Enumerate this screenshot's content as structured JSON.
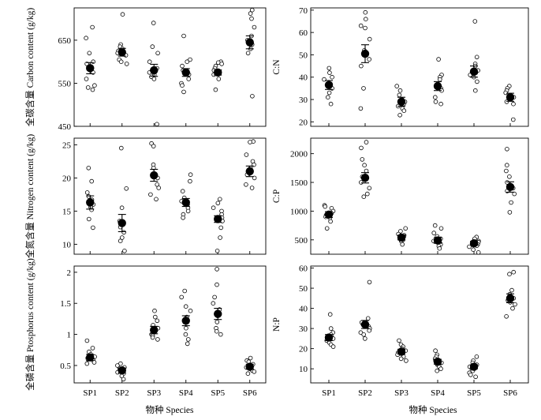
{
  "x_axis_title": "物种 Species",
  "chart_data": [
    {
      "type": "scatter",
      "ylabel": "全碳含量 Carbon content (g/kg)",
      "categories": [
        "SP1",
        "SP2",
        "SP3",
        "SP4",
        "SP5",
        "SP6"
      ],
      "ylim": [
        450,
        725
      ],
      "yticks": [
        450,
        550,
        650
      ],
      "means": [
        585,
        622,
        580,
        575,
        575,
        645
      ],
      "se": [
        13,
        9,
        14,
        9,
        6,
        15
      ],
      "points": [
        [
          680,
          655,
          620,
          600,
          595,
          575,
          560,
          545,
          540,
          535
        ],
        [
          710,
          640,
          635,
          630,
          625,
          620,
          615,
          605,
          600,
          595
        ],
        [
          690,
          635,
          620,
          600,
          585,
          575,
          570,
          565,
          560,
          455
        ],
        [
          660,
          605,
          600,
          590,
          580,
          570,
          560,
          550,
          545,
          530
        ],
        [
          600,
          598,
          595,
          590,
          585,
          580,
          578,
          570,
          560,
          535
        ],
        [
          720,
          712,
          700,
          680,
          660,
          650,
          640,
          630,
          620,
          520
        ]
      ]
    },
    {
      "type": "scatter",
      "ylabel": "C:N",
      "categories": [
        "SP1",
        "SP2",
        "SP3",
        "SP4",
        "SP5",
        "SP6"
      ],
      "ylim": [
        18,
        71
      ],
      "yticks": [
        20,
        30,
        40,
        50,
        60,
        70
      ],
      "means": [
        36.5,
        50.5,
        29,
        36,
        42.5,
        31
      ],
      "se": [
        2,
        4,
        2,
        2,
        2.5,
        1.8
      ],
      "points": [
        [
          44,
          42,
          40,
          39,
          37,
          36,
          35,
          33,
          31,
          28
        ],
        [
          69,
          66,
          63,
          62,
          57,
          52,
          48,
          45,
          35,
          26
        ],
        [
          36,
          34,
          32,
          30,
          29,
          28,
          27,
          26,
          25,
          23
        ],
        [
          48,
          41,
          40,
          39,
          37,
          35,
          34,
          31,
          29,
          28
        ],
        [
          65,
          49,
          46,
          45,
          43,
          42,
          41,
          40,
          38,
          34
        ],
        [
          36,
          35,
          34,
          33,
          32,
          31,
          30,
          29,
          28,
          21
        ]
      ]
    },
    {
      "type": "scatter",
      "ylabel": "全氮含量 Nitrogen content (g/kg)",
      "categories": [
        "SP1",
        "SP2",
        "SP3",
        "SP4",
        "SP5",
        "SP6"
      ],
      "ylim": [
        8.5,
        26
      ],
      "yticks": [
        10,
        15,
        20,
        25
      ],
      "means": [
        16.3,
        13.2,
        20.4,
        16.3,
        13.8,
        21.0
      ],
      "se": [
        1.0,
        1.3,
        0.9,
        0.6,
        0.5,
        0.8
      ],
      "points": [
        [
          21.5,
          19.5,
          17.8,
          17.2,
          16.7,
          16.0,
          15.6,
          15.2,
          13.8,
          12.5
        ],
        [
          24.5,
          18.4,
          15.5,
          13.5,
          13.0,
          12.6,
          11.8,
          11.0,
          10.5,
          9.0
        ],
        [
          25.2,
          24.8,
          22.0,
          21.5,
          20.5,
          20.0,
          19.0,
          18.5,
          17.5,
          16.8
        ],
        [
          20.5,
          19.5,
          18.0,
          17.0,
          16.5,
          16.0,
          15.5,
          15.0,
          14.5,
          14.0
        ],
        [
          16.8,
          16.2,
          15.5,
          15.0,
          14.5,
          14.0,
          13.5,
          12.5,
          11.0,
          9.0
        ],
        [
          25.5,
          25.4,
          23.5,
          22.5,
          22.0,
          21.5,
          20.5,
          20.0,
          19.0,
          18.5
        ]
      ]
    },
    {
      "type": "scatter",
      "ylabel": "C:P",
      "categories": [
        "SP1",
        "SP2",
        "SP3",
        "SP4",
        "SP5",
        "SP6"
      ],
      "ylim": [
        250,
        2270
      ],
      "yticks": [
        500,
        1000,
        1500,
        2000
      ],
      "means": [
        940,
        1580,
        540,
        490,
        440,
        1420
      ],
      "se": [
        50,
        90,
        40,
        50,
        35,
        90
      ],
      "points": [
        [
          1100,
          1080,
          1050,
          1000,
          960,
          930,
          900,
          880,
          820,
          700
        ],
        [
          2200,
          2100,
          1900,
          1800,
          1700,
          1600,
          1500,
          1400,
          1300,
          1250
        ],
        [
          700,
          650,
          600,
          580,
          560,
          540,
          520,
          500,
          480,
          420
        ],
        [
          750,
          700,
          620,
          560,
          520,
          480,
          440,
          420,
          390,
          350
        ],
        [
          550,
          520,
          480,
          460,
          440,
          420,
          400,
          380,
          330,
          280
        ],
        [
          2080,
          1800,
          1700,
          1600,
          1500,
          1400,
          1350,
          1300,
          1150,
          980
        ]
      ]
    },
    {
      "type": "scatter",
      "ylabel": "全磷含量 Ptosphorus content (g/kg)",
      "categories": [
        "SP1",
        "SP2",
        "SP3",
        "SP4",
        "SP5",
        "SP6"
      ],
      "ylim": [
        0.22,
        2.1
      ],
      "yticks": [
        0.5,
        1.0,
        1.5,
        2.0
      ],
      "means": [
        0.63,
        0.42,
        1.07,
        1.22,
        1.33,
        0.48
      ],
      "se": [
        0.05,
        0.04,
        0.06,
        0.08,
        0.09,
        0.04
      ],
      "points": [
        [
          0.9,
          0.78,
          0.72,
          0.68,
          0.64,
          0.62,
          0.6,
          0.58,
          0.55,
          0.53
        ],
        [
          0.53,
          0.5,
          0.47,
          0.45,
          0.43,
          0.41,
          0.39,
          0.37,
          0.33,
          0.28
        ],
        [
          1.38,
          1.28,
          1.22,
          1.15,
          1.1,
          1.05,
          1.0,
          0.98,
          0.95,
          0.92
        ],
        [
          1.7,
          1.6,
          1.45,
          1.38,
          1.28,
          1.2,
          1.1,
          1.0,
          0.92,
          0.85
        ],
        [
          2.05,
          1.8,
          1.6,
          1.5,
          1.4,
          1.3,
          1.2,
          1.1,
          1.05,
          1.0
        ],
        [
          0.62,
          0.58,
          0.56,
          0.52,
          0.5,
          0.47,
          0.45,
          0.42,
          0.4,
          0.37
        ]
      ]
    },
    {
      "type": "scatter",
      "ylabel": "N:P",
      "categories": [
        "SP1",
        "SP2",
        "SP3",
        "SP4",
        "SP5",
        "SP6"
      ],
      "ylim": [
        3,
        61
      ],
      "yticks": [
        10,
        20,
        30,
        40,
        50,
        60
      ],
      "means": [
        25.5,
        32,
        18.5,
        13.5,
        11,
        45
      ],
      "se": [
        1.5,
        2,
        1.2,
        1.2,
        1.0,
        2.2
      ],
      "points": [
        [
          37,
          30,
          28,
          27,
          26,
          25,
          24,
          23,
          22,
          21
        ],
        [
          53,
          35,
          33,
          32,
          31,
          30,
          29,
          28,
          27,
          25
        ],
        [
          24,
          22,
          21,
          20,
          19,
          18,
          17,
          16,
          15,
          14
        ],
        [
          19,
          17,
          16,
          15,
          14,
          13,
          12,
          11,
          10,
          9
        ],
        [
          16,
          14,
          13,
          12,
          11,
          10,
          9,
          8,
          7,
          6
        ],
        [
          58,
          57,
          49,
          47,
          45,
          44,
          43,
          42,
          40,
          36
        ]
      ]
    }
  ]
}
